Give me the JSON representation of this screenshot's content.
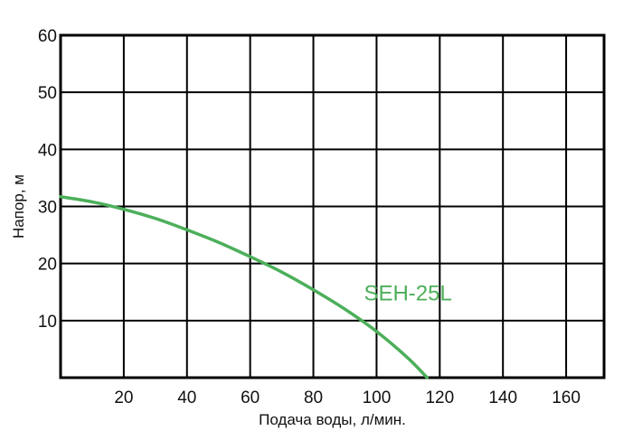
{
  "chart_data": {
    "type": "line",
    "title": "",
    "xlabel": "Подача воды, л/мин.",
    "ylabel": "Напор, м",
    "xlim": [
      0,
      172
    ],
    "ylim": [
      0,
      60
    ],
    "x_ticks": [
      20,
      40,
      60,
      80,
      100,
      120,
      140,
      160
    ],
    "x_tick_labels": [
      "20",
      "40",
      "60",
      "80",
      "100",
      "120",
      "140",
      "160"
    ],
    "y_ticks": [
      10,
      20,
      30,
      40,
      50,
      60
    ],
    "y_tick_labels": [
      "10",
      "20",
      "30",
      "40",
      "50",
      "60"
    ],
    "y_grid": [
      10,
      20,
      30,
      40,
      50
    ],
    "grid": true,
    "legend": "none",
    "series": [
      {
        "name": "SEH-25L",
        "color": "#4caf5a",
        "label_at": [
          96,
          13.5
        ],
        "x": [
          0,
          10,
          20,
          30,
          40,
          50,
          60,
          70,
          80,
          90,
          100,
          110,
          116
        ],
        "y": [
          31.7,
          30.8,
          29.5,
          27.9,
          25.9,
          23.7,
          21.2,
          18.5,
          15.4,
          12.0,
          8.1,
          3.4,
          0
        ]
      }
    ]
  }
}
